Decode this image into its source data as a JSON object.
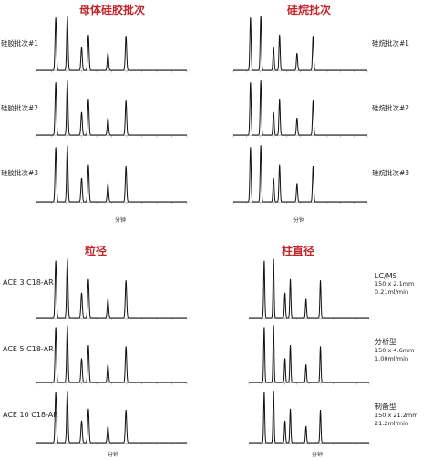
{
  "titles": {
    "top_left": "母体硅胶批次",
    "top_right": "硅烷批次",
    "bottom_left": "粒径",
    "bottom_right": "柱直径"
  },
  "row_labels": {
    "top_left": [
      "硅胶批次#1",
      "硅胶批次#2",
      "硅胶批次#3"
    ],
    "top_right": [
      "硅烷批次#1",
      "硅烷批次#2",
      "硅烷批次#3"
    ],
    "bottom_left": [
      "ACE 3 C18-AR",
      "ACE 5 C18-AR",
      "ACE 10 C18-AR"
    ]
  },
  "bottom_right_labels": [
    {
      "name": "LC/MS",
      "dims": "150 x 2.1mm",
      "flow": "0.21ml/min"
    },
    {
      "name": "分析型",
      "dims": "150 x 4.6mm",
      "flow": "1.00ml/min"
    },
    {
      "name": "制备型",
      "dims": "150 x 21.2mm",
      "flow": "21.2ml/min"
    }
  ],
  "x_axis_label": "分钟",
  "colors": {
    "title": "#c0272d",
    "trace": "#111111",
    "axis": "#888888"
  },
  "chart_data": {
    "type": "line",
    "x_unit": "min",
    "xlim": [
      0,
      10
    ],
    "x_ticks": [
      0,
      1,
      2,
      3,
      4,
      5,
      6,
      7,
      8,
      9,
      10
    ],
    "ylim": [
      0,
      1
    ],
    "peaks": [
      {
        "rt": 1.28,
        "height": 0.92
      },
      {
        "rt": 2.05,
        "height": 0.95
      },
      {
        "rt": 3.0,
        "height": 0.4
      },
      {
        "rt": 3.45,
        "height": 0.62
      },
      {
        "rt": 4.75,
        "height": 0.3
      },
      {
        "rt": 5.95,
        "height": 0.6
      }
    ],
    "panels": [
      {
        "group": "top_left",
        "row": 0
      },
      {
        "group": "top_left",
        "row": 1
      },
      {
        "group": "top_left",
        "row": 2
      },
      {
        "group": "top_right",
        "row": 0
      },
      {
        "group": "top_right",
        "row": 1
      },
      {
        "group": "top_right",
        "row": 2
      },
      {
        "group": "bottom_left",
        "row": 0
      },
      {
        "group": "bottom_left",
        "row": 1
      },
      {
        "group": "bottom_left",
        "row": 2
      },
      {
        "group": "bottom_right",
        "row": 0
      },
      {
        "group": "bottom_right",
        "row": 1
      },
      {
        "group": "bottom_right",
        "row": 2
      }
    ]
  }
}
